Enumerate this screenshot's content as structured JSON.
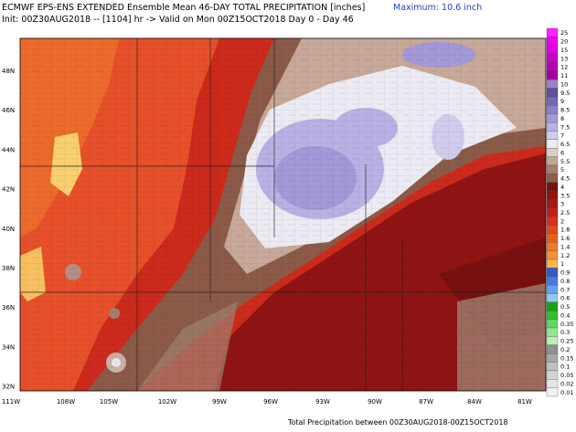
{
  "header": {
    "title": "ECMWF EPS-ENS EXTENDED Ensemble Mean 46-DAY TOTAL PRECIPITATION [inches]",
    "subtitle": "Init: 00Z30AUG2018 -- [1104] hr -> Valid on Mon 00Z15OCT2018  Day 0 - Day 46",
    "maximum": "Maximum: 10.6 inch"
  },
  "map": {
    "lat_labels": [
      "48N",
      "46N",
      "44N",
      "42N",
      "40N",
      "38N",
      "36N",
      "34N",
      "32N"
    ],
    "lon_labels": [
      "111W",
      "108W",
      "105W",
      "102W",
      "99W",
      "96W",
      "93W",
      "90W",
      "87W",
      "84W",
      "81W"
    ]
  },
  "colorbar": {
    "levels": [
      25,
      20,
      15,
      13,
      12,
      11,
      10,
      9.5,
      9,
      8.5,
      8,
      7.5,
      7,
      6.5,
      6,
      5.5,
      5,
      4.5,
      4,
      3.5,
      3,
      2.5,
      2,
      1.8,
      1.6,
      1.4,
      1.2,
      1,
      0.9,
      0.8,
      0.7,
      0.6,
      0.5,
      0.4,
      0.35,
      0.3,
      0.25,
      0.2,
      0.15,
      0.1,
      0.05,
      0.02,
      0.01
    ],
    "colors": [
      "#ff20ff",
      "#f000f0",
      "#e000e0",
      "#cc00cc",
      "#b800b8",
      "#a000a0",
      "#a080c8",
      "#6050a0",
      "#7868b8",
      "#8c80c8",
      "#a498d8",
      "#bab0e4",
      "#d0cced",
      "#ecebf2",
      "#dccfc8",
      "#c0a898",
      "#a08070",
      "#886050",
      "#781010",
      "#901414",
      "#a81818",
      "#c02018",
      "#d83020",
      "#e04820",
      "#e86020",
      "#f07828",
      "#f49038",
      "#f8b848",
      "#3858c8",
      "#4878e0",
      "#68a0f0",
      "#90c8f8",
      "#18a018",
      "#30c030",
      "#60d860",
      "#90e890",
      "#b8f0b8",
      "#909090",
      "#a8a8a8",
      "#c0c0c0",
      "#d4d4d4",
      "#e4e4e4",
      "#f0f0f0"
    ]
  },
  "footer": "Total Precipitation between 00Z30AUG2018-00Z15OCT2018"
}
